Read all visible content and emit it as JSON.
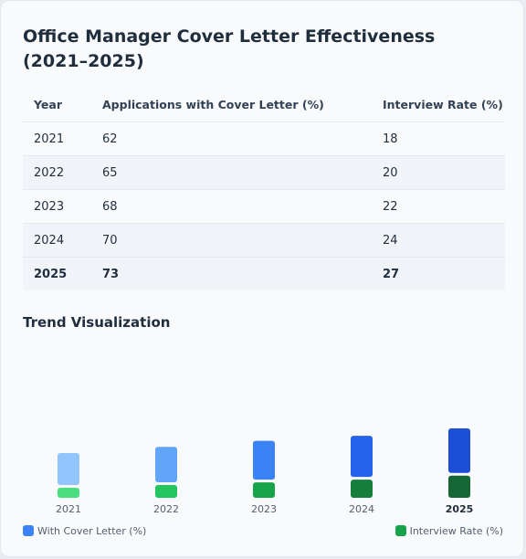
{
  "title": "Office Manager Cover Letter Effectiveness (2021–2025)",
  "table": {
    "headers": [
      "Year",
      "Applications with Cover Letter (%)",
      "Interview Rate (%)"
    ],
    "rows": [
      [
        "2021",
        "62",
        "18"
      ],
      [
        "2022",
        "65",
        "20"
      ],
      [
        "2023",
        "68",
        "22"
      ],
      [
        "2024",
        "70",
        "24"
      ],
      [
        "2025",
        "73",
        "27"
      ]
    ]
  },
  "trend_title": "Trend Visualization",
  "chart_data": {
    "type": "bar",
    "categories": [
      "2021",
      "2022",
      "2023",
      "2024",
      "2025"
    ],
    "series": [
      {
        "name": "With Cover Letter (%)",
        "values": [
          62,
          65,
          68,
          70,
          73
        ],
        "colors": [
          "#93c5fd",
          "#60a5fa",
          "#3b82f6",
          "#2563eb",
          "#1d4ed8"
        ]
      },
      {
        "name": "Interview Rate (%)",
        "values": [
          18,
          20,
          22,
          24,
          27
        ],
        "colors": [
          "#4ade80",
          "#22c55e",
          "#16a34a",
          "#15803d",
          "#166534"
        ]
      }
    ],
    "highlight_category": "2025",
    "legend_position": "bottom",
    "grid": false
  },
  "legend": {
    "cover_letter": {
      "label": "With Cover Letter (%)",
      "color": "#3b82f6"
    },
    "interview": {
      "label": "Interview Rate (%)",
      "color": "#16a34a"
    }
  }
}
